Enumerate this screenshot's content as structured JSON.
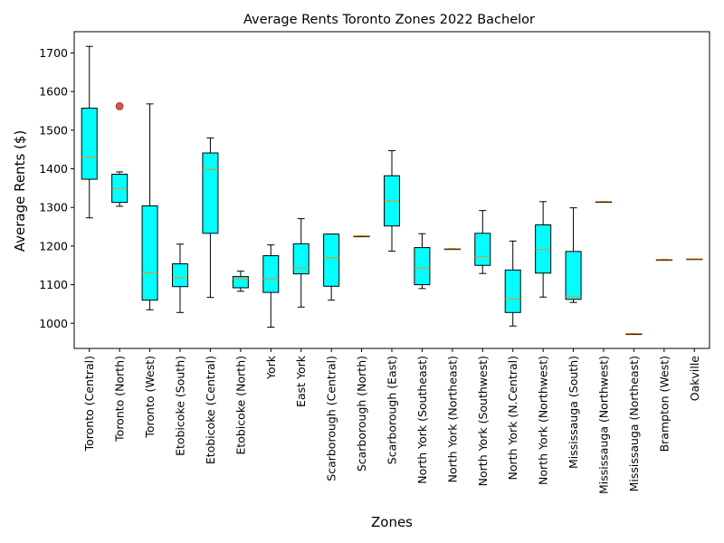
{
  "chart_data": {
    "type": "box",
    "title": "Average Rents Toronto Zones 2022 Bachelor",
    "xlabel": "Zones",
    "ylabel": "Average Rents ($)",
    "ylim": [
      935,
      1755
    ],
    "yticks": [
      1000,
      1100,
      1200,
      1300,
      1400,
      1500,
      1600,
      1700
    ],
    "ytick_labels": [
      "1000",
      "1100",
      "1200",
      "1300",
      "1400",
      "1500",
      "1600",
      "1700"
    ],
    "grid": false,
    "legend": "none",
    "colors": {
      "box_fill": "#00ffff",
      "median": "#ff8c00",
      "outlier_fill": "#e05050",
      "edge": "#000000"
    },
    "categories": [
      "Toronto (Central)",
      "Toronto (North)",
      "Toronto (West)",
      "Etobicoke (South)",
      "Etobicoke (Central)",
      "Etobicoke (North)",
      "York",
      "East York",
      "Scarborough (Central)",
      "Scarborough (North)",
      "Scarborough (East)",
      "North York (Southeast)",
      "North York (Northeast)",
      "North York (Southwest)",
      "North York (N.Central)",
      "North York (Northwest)",
      "Mississauga (South)",
      "Mississauga (Northwest)",
      "Mississauga (Northeast)",
      "Brampton (West)",
      "Oakville"
    ],
    "boxes": [
      {
        "whislo": 1273,
        "q1": 1373,
        "med": 1430,
        "q3": 1557,
        "whishi": 1717,
        "fliers": []
      },
      {
        "whislo": 1303,
        "q1": 1313,
        "med": 1349,
        "q3": 1386,
        "whishi": 1392,
        "fliers": [
          1562
        ]
      },
      {
        "whislo": 1035,
        "q1": 1060,
        "med": 1131,
        "q3": 1304,
        "whishi": 1568,
        "fliers": []
      },
      {
        "whislo": 1028,
        "q1": 1095,
        "med": 1118,
        "q3": 1154,
        "whishi": 1205,
        "fliers": []
      },
      {
        "whislo": 1067,
        "q1": 1233,
        "med": 1398,
        "q3": 1441,
        "whishi": 1480,
        "fliers": []
      },
      {
        "whislo": 1083,
        "q1": 1092,
        "med": 1115,
        "q3": 1121,
        "whishi": 1135,
        "fliers": []
      },
      {
        "whislo": 990,
        "q1": 1080,
        "med": 1115,
        "q3": 1175,
        "whishi": 1203,
        "fliers": []
      },
      {
        "whislo": 1042,
        "q1": 1128,
        "med": 1143,
        "q3": 1206,
        "whishi": 1271,
        "fliers": []
      },
      {
        "whislo": 1060,
        "q1": 1096,
        "med": 1170,
        "q3": 1231,
        "whishi": 1231,
        "fliers": []
      },
      {
        "whislo": 1226,
        "q1": 1226,
        "med": 1226,
        "q3": 1226,
        "whishi": 1226,
        "fliers": []
      },
      {
        "whislo": 1187,
        "q1": 1252,
        "med": 1317,
        "q3": 1382,
        "whishi": 1447,
        "fliers": []
      },
      {
        "whislo": 1090,
        "q1": 1100,
        "med": 1143,
        "q3": 1196,
        "whishi": 1232,
        "fliers": []
      },
      {
        "whislo": 1193,
        "q1": 1193,
        "med": 1193,
        "q3": 1193,
        "whishi": 1193,
        "fliers": []
      },
      {
        "whislo": 1129,
        "q1": 1150,
        "med": 1173,
        "q3": 1233,
        "whishi": 1292,
        "fliers": []
      },
      {
        "whislo": 993,
        "q1": 1028,
        "med": 1063,
        "q3": 1138,
        "whishi": 1213,
        "fliers": []
      },
      {
        "whislo": 1068,
        "q1": 1130,
        "med": 1191,
        "q3": 1255,
        "whishi": 1315,
        "fliers": []
      },
      {
        "whislo": 1054,
        "q1": 1062,
        "med": 1070,
        "q3": 1186,
        "whishi": 1299,
        "fliers": []
      },
      {
        "whislo": 1315,
        "q1": 1315,
        "med": 1315,
        "q3": 1315,
        "whishi": 1315,
        "fliers": []
      },
      {
        "whislo": 973,
        "q1": 973,
        "med": 973,
        "q3": 973,
        "whishi": 973,
        "fliers": []
      },
      {
        "whislo": 1165,
        "q1": 1165,
        "med": 1165,
        "q3": 1165,
        "whishi": 1165,
        "fliers": []
      },
      {
        "whislo": 1167,
        "q1": 1167,
        "med": 1167,
        "q3": 1167,
        "whishi": 1167,
        "fliers": []
      }
    ]
  }
}
